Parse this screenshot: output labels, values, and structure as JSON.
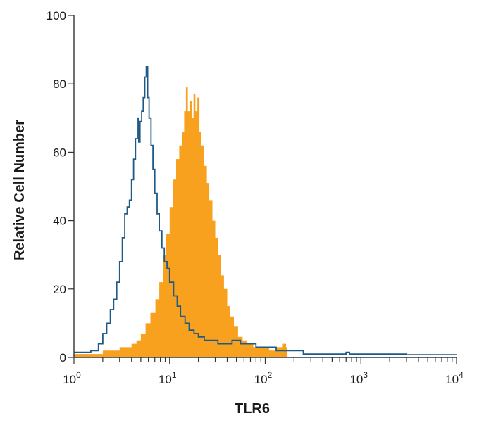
{
  "chart_data": {
    "type": "area",
    "title": "",
    "xlabel": "TLR6",
    "ylabel": "Relative Cell Number",
    "x_scale": "log",
    "xlim": [
      1,
      10000
    ],
    "ylim": [
      0,
      100
    ],
    "x_ticks": [
      {
        "base": "10",
        "exp": "0",
        "value": 1
      },
      {
        "base": "10",
        "exp": "1",
        "value": 10
      },
      {
        "base": "10",
        "exp": "2",
        "value": 100
      },
      {
        "base": "10",
        "exp": "3",
        "value": 1000
      },
      {
        "base": "10",
        "exp": "4",
        "value": 10000
      }
    ],
    "y_ticks": [
      "0",
      "20",
      "40",
      "60",
      "80",
      "100"
    ],
    "grid": false,
    "legend": "none",
    "series": [
      {
        "style": "filled",
        "color": "#f7a11f",
        "points": [
          [
            1.0,
            1
          ],
          [
            1.5,
            1
          ],
          [
            2.0,
            2
          ],
          [
            2.5,
            2
          ],
          [
            3.0,
            3
          ],
          [
            3.5,
            3
          ],
          [
            4.0,
            4
          ],
          [
            4.5,
            5
          ],
          [
            5.0,
            7
          ],
          [
            5.6,
            10
          ],
          [
            6.3,
            13
          ],
          [
            7.1,
            17
          ],
          [
            7.8,
            22
          ],
          [
            8.5,
            30
          ],
          [
            9.2,
            36
          ],
          [
            10.0,
            44
          ],
          [
            10.8,
            52
          ],
          [
            11.7,
            58
          ],
          [
            12.6,
            62
          ],
          [
            13.5,
            66
          ],
          [
            14.2,
            72
          ],
          [
            14.8,
            79
          ],
          [
            15.5,
            72
          ],
          [
            16.3,
            75
          ],
          [
            17.0,
            70
          ],
          [
            17.8,
            77
          ],
          [
            18.6,
            72
          ],
          [
            19.5,
            76
          ],
          [
            20.5,
            66
          ],
          [
            21.5,
            62
          ],
          [
            23.0,
            56
          ],
          [
            24.5,
            51
          ],
          [
            26.0,
            46
          ],
          [
            28.0,
            40
          ],
          [
            30.0,
            35
          ],
          [
            32.0,
            30
          ],
          [
            34.5,
            24
          ],
          [
            37.0,
            20
          ],
          [
            40.0,
            15
          ],
          [
            43.0,
            12
          ],
          [
            47.0,
            9
          ],
          [
            52.0,
            6
          ],
          [
            58.0,
            5
          ],
          [
            65.0,
            4
          ],
          [
            75.0,
            3
          ],
          [
            90.0,
            3
          ],
          [
            110.0,
            2
          ],
          [
            130.0,
            3
          ],
          [
            150.0,
            4
          ],
          [
            165.0,
            3
          ],
          [
            170.0,
            0
          ]
        ]
      },
      {
        "style": "outline",
        "color": "#1f5a87",
        "points": [
          [
            1.0,
            1.5
          ],
          [
            1.5,
            2
          ],
          [
            1.8,
            4
          ],
          [
            2.0,
            7
          ],
          [
            2.2,
            10
          ],
          [
            2.4,
            14
          ],
          [
            2.6,
            17
          ],
          [
            2.8,
            22
          ],
          [
            3.0,
            28
          ],
          [
            3.2,
            35
          ],
          [
            3.4,
            42
          ],
          [
            3.6,
            44
          ],
          [
            3.8,
            46
          ],
          [
            4.0,
            52
          ],
          [
            4.2,
            58
          ],
          [
            4.4,
            64
          ],
          [
            4.6,
            70
          ],
          [
            4.75,
            63
          ],
          [
            4.9,
            69
          ],
          [
            5.1,
            72
          ],
          [
            5.3,
            76
          ],
          [
            5.5,
            82
          ],
          [
            5.7,
            85
          ],
          [
            5.9,
            76
          ],
          [
            6.1,
            70
          ],
          [
            6.4,
            62
          ],
          [
            6.7,
            55
          ],
          [
            7.0,
            48
          ],
          [
            7.4,
            42
          ],
          [
            7.8,
            37
          ],
          [
            8.3,
            32
          ],
          [
            8.8,
            28
          ],
          [
            9.4,
            26
          ],
          [
            10.0,
            22
          ],
          [
            11.0,
            18
          ],
          [
            12.0,
            15
          ],
          [
            13.0,
            12
          ],
          [
            14.5,
            10
          ],
          [
            16.0,
            8
          ],
          [
            18.0,
            7
          ],
          [
            20.0,
            6
          ],
          [
            23.0,
            5
          ],
          [
            27.0,
            5
          ],
          [
            32.0,
            4
          ],
          [
            38.0,
            4
          ],
          [
            45.0,
            5
          ],
          [
            55.0,
            4
          ],
          [
            65.0,
            4
          ],
          [
            80.0,
            3
          ],
          [
            100.0,
            3
          ],
          [
            130.0,
            2
          ],
          [
            180.0,
            2
          ],
          [
            250.0,
            1
          ],
          [
            400.0,
            1
          ],
          [
            600.0,
            1
          ],
          [
            700.0,
            1.5
          ],
          [
            760.0,
            1
          ],
          [
            1000.0,
            1
          ],
          [
            3000.0,
            0.8
          ],
          [
            10000.0,
            0.8
          ]
        ]
      }
    ]
  }
}
